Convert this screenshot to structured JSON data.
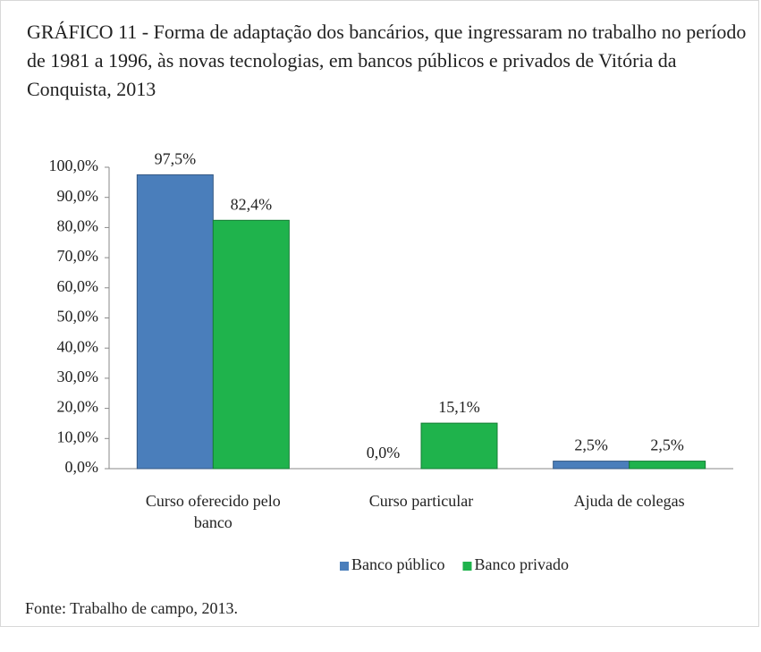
{
  "chart_data": {
    "type": "bar",
    "title": "GRÁFICO 11  - Forma de adaptação dos bancários, que ingressaram no trabalho no período de 1981 a 1996, às novas tecnologias, em bancos públicos e privados de Vitória da Conquista, 2013",
    "categories": [
      "Curso oferecido pelo banco",
      "Curso particular",
      "Ajuda de colegas"
    ],
    "series": [
      {
        "name": "Banco público",
        "color": "#4a7ebb",
        "values": [
          97.5,
          0,
          2.5
        ],
        "value_labels": [
          "97,5%",
          "0,0%",
          "2,5%"
        ]
      },
      {
        "name": "Banco privado",
        "color": "#1fb34c",
        "values": [
          82.4,
          15.1,
          2.5
        ],
        "value_labels": [
          "82,4%",
          "15,1%",
          "2,5%"
        ]
      }
    ],
    "ylim": [
      0,
      100
    ],
    "yticks": [
      {
        "value": 0,
        "label": "0,0%"
      },
      {
        "value": 10,
        "label": "10,0%"
      },
      {
        "value": 20,
        "label": "20,0%"
      },
      {
        "value": 30,
        "label": "30,0%"
      },
      {
        "value": 40,
        "label": "40,0%"
      },
      {
        "value": 50,
        "label": "50,0%"
      },
      {
        "value": 60,
        "label": "60,0%"
      },
      {
        "value": 70,
        "label": "70,0%"
      },
      {
        "value": 80,
        "label": "80,0%"
      },
      {
        "value": 90,
        "label": "90,0%"
      },
      {
        "value": 100,
        "label": "100,0%"
      }
    ],
    "grid": false,
    "legend": "bottom",
    "source": "Fonte: Trabalho de campo, 2013."
  }
}
